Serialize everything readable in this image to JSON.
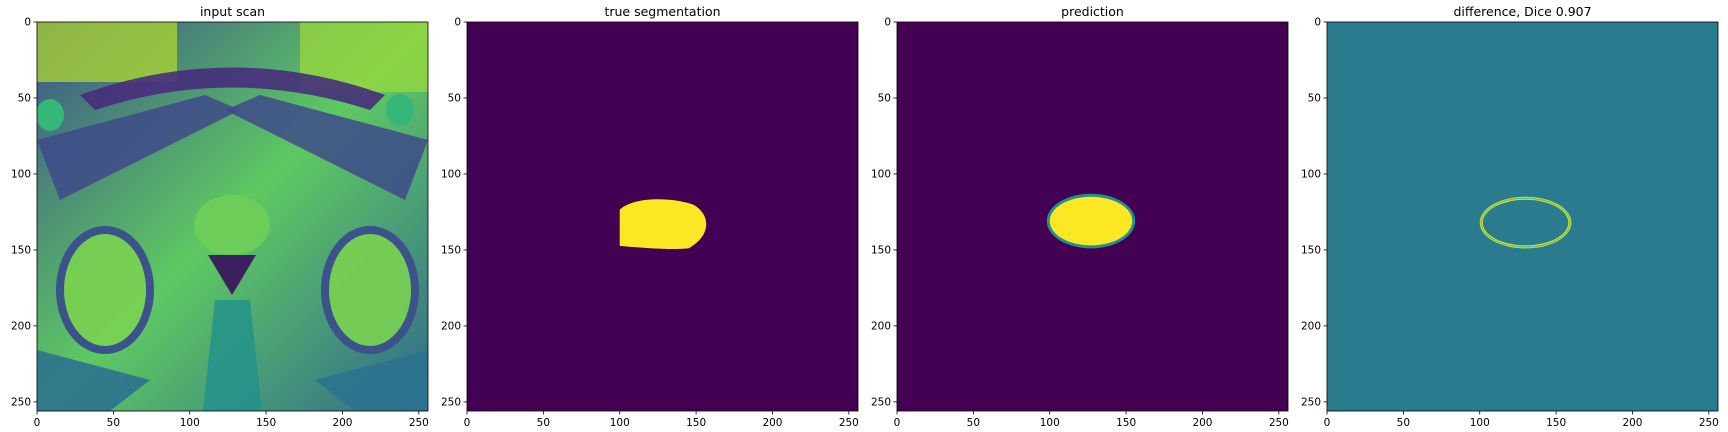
{
  "chart_data": [
    {
      "type": "heatmap",
      "title": "input scan",
      "xlim": [
        0,
        256
      ],
      "ylim": [
        256,
        0
      ],
      "xticks": [
        "0",
        "50",
        "100",
        "150",
        "200",
        "250"
      ],
      "yticks": [
        "0",
        "50",
        "100",
        "150",
        "200",
        "250"
      ],
      "colormap": "viridis",
      "content": "MRI pelvic scan intensity image"
    },
    {
      "type": "heatmap",
      "title": "true segmentation",
      "xlim": [
        0,
        256
      ],
      "ylim": [
        256,
        0
      ],
      "xticks": [
        "0",
        "50",
        "100",
        "150",
        "200",
        "250"
      ],
      "yticks": [
        "0",
        "50",
        "100",
        "150",
        "200",
        "250"
      ],
      "colormap": "viridis",
      "region": {
        "x_range": [
          100,
          160
        ],
        "y_range": [
          115,
          149
        ],
        "value": 1
      },
      "background_value": 0
    },
    {
      "type": "heatmap",
      "title": "prediction",
      "xlim": [
        0,
        256
      ],
      "ylim": [
        256,
        0
      ],
      "xticks": [
        "0",
        "50",
        "100",
        "150",
        "200",
        "250"
      ],
      "yticks": [
        "0",
        "50",
        "100",
        "150",
        "200",
        "250"
      ],
      "colormap": "viridis",
      "region": {
        "x_range": [
          99,
          155
        ],
        "y_range": [
          114,
          148
        ],
        "value": 1
      },
      "background_value": 0
    },
    {
      "type": "heatmap",
      "title": "difference, Dice 0.907",
      "xlim": [
        0,
        256
      ],
      "ylim": [
        256,
        0
      ],
      "xticks": [
        "0",
        "50",
        "100",
        "150",
        "200",
        "250"
      ],
      "yticks": [
        "0",
        "50",
        "100",
        "150",
        "200",
        "250"
      ],
      "colormap": "viridis",
      "dice": 0.907,
      "region": {
        "x_range": [
          100,
          160
        ],
        "y_range": [
          115,
          149
        ]
      },
      "background_value": 0
    }
  ],
  "colors": {
    "viridis_low": "#440154",
    "viridis_mid": "#2a7b8e",
    "viridis_high": "#fde725",
    "viridis_teal": "#21918c",
    "viridis_green": "#5ec962"
  }
}
